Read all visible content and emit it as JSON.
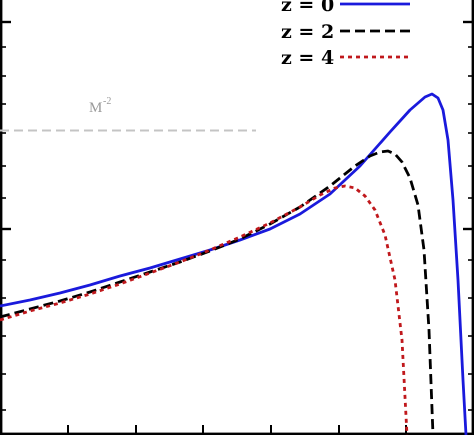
{
  "chart_data": {
    "type": "line",
    "title": "",
    "xlabel": "",
    "ylabel": "",
    "grid": false,
    "legend_position": "top-right",
    "series": [
      {
        "name": "z = 0",
        "color": "#1a1adc",
        "dash": "solid",
        "points": [
          [
            0,
            306
          ],
          [
            30,
            300
          ],
          [
            60,
            293
          ],
          [
            90,
            285
          ],
          [
            120,
            276
          ],
          [
            150,
            268
          ],
          [
            180,
            259
          ],
          [
            210,
            250
          ],
          [
            240,
            240
          ],
          [
            270,
            229
          ],
          [
            300,
            214
          ],
          [
            330,
            194
          ],
          [
            360,
            166
          ],
          [
            390,
            132
          ],
          [
            410,
            110
          ],
          [
            425,
            97
          ],
          [
            432,
            94
          ],
          [
            438,
            98
          ],
          [
            443,
            110
          ],
          [
            448,
            140
          ],
          [
            453,
            200
          ],
          [
            458,
            280
          ],
          [
            463,
            380
          ],
          [
            466,
            435
          ]
        ]
      },
      {
        "name": "z = 2",
        "color": "#000000",
        "dash": "dashed",
        "points": [
          [
            0,
            317
          ],
          [
            30,
            309
          ],
          [
            60,
            301
          ],
          [
            90,
            292
          ],
          [
            120,
            282
          ],
          [
            150,
            272
          ],
          [
            180,
            262
          ],
          [
            210,
            251
          ],
          [
            240,
            239
          ],
          [
            270,
            224
          ],
          [
            300,
            207
          ],
          [
            330,
            186
          ],
          [
            355,
            166
          ],
          [
            370,
            156
          ],
          [
            380,
            152
          ],
          [
            388,
            151
          ],
          [
            395,
            154
          ],
          [
            402,
            162
          ],
          [
            410,
            178
          ],
          [
            418,
            205
          ],
          [
            424,
            250
          ],
          [
            429,
            330
          ],
          [
            433,
            435
          ]
        ]
      },
      {
        "name": "z = 4",
        "color": "#c0181c",
        "dash": "dotted",
        "points": [
          [
            0,
            320
          ],
          [
            30,
            311
          ],
          [
            60,
            303
          ],
          [
            90,
            294
          ],
          [
            120,
            284
          ],
          [
            150,
            273
          ],
          [
            180,
            262
          ],
          [
            210,
            250
          ],
          [
            240,
            237
          ],
          [
            270,
            223
          ],
          [
            300,
            207
          ],
          [
            320,
            195
          ],
          [
            335,
            188
          ],
          [
            345,
            186
          ],
          [
            355,
            188
          ],
          [
            365,
            196
          ],
          [
            375,
            210
          ],
          [
            385,
            235
          ],
          [
            395,
            280
          ],
          [
            402,
            340
          ],
          [
            407,
            435
          ]
        ]
      }
    ],
    "reference": {
      "label": "M",
      "sup": "-2",
      "color": "#c4c4c4"
    }
  }
}
